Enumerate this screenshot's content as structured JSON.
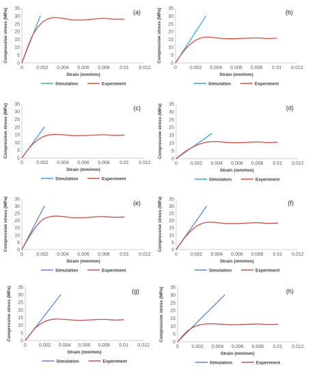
{
  "colors": {
    "simulation_cyan": "#2aa9d8",
    "simulation_blue": "#5b82d6",
    "experiment": "#e0483f",
    "axis": "#bfbfbf",
    "text": "#595959"
  },
  "chart_data": [
    {
      "type": "line",
      "panel_label": "(a)",
      "xlabel": "Strain (mm/mm)",
      "ylabel": "Compressive stress (MPa)",
      "xlim": [
        0,
        0.012
      ],
      "ylim": [
        0,
        35
      ],
      "xticks": [
        "0",
        "0.002",
        "0.004",
        "0.006",
        "0.008",
        "0.01",
        "0.012"
      ],
      "yticks": [
        "0",
        "5",
        "10",
        "15",
        "20",
        "25",
        "30",
        "35"
      ],
      "legend": "bottom",
      "series": [
        {
          "name": "Simulation",
          "color": "#2aa9d8",
          "x": [
            0,
            0.0018
          ],
          "y": [
            0,
            30
          ]
        },
        {
          "name": "Experiment",
          "color": "#e0483f",
          "x": [
            0,
            0.001,
            0.002,
            0.003,
            0.004,
            0.005,
            0.006,
            0.007,
            0.008,
            0.009,
            0.01
          ],
          "y": [
            0,
            17,
            26,
            29,
            28.5,
            27.5,
            27.5,
            28,
            28.5,
            28,
            28
          ]
        }
      ]
    },
    {
      "type": "line",
      "panel_label": "(b)",
      "xlabel": "Strain (mm/mm)",
      "ylabel": "Compressive stress (MPa)",
      "xlim": [
        0,
        0.012
      ],
      "ylim": [
        0,
        35
      ],
      "xticks": [
        "0",
        "0.002",
        "0.004",
        "0.006",
        "0.008",
        "0.01",
        "0.012"
      ],
      "yticks": [
        "0",
        "5",
        "10",
        "15",
        "20",
        "25",
        "30",
        "35"
      ],
      "legend": "bottom",
      "series": [
        {
          "name": "Simulation",
          "color": "#2aa9d8",
          "x": [
            0,
            0.003
          ],
          "y": [
            0,
            30
          ]
        },
        {
          "name": "Experiment",
          "color": "#e0483f",
          "x": [
            0,
            0.001,
            0.002,
            0.003,
            0.004,
            0.005,
            0.006,
            0.007,
            0.008,
            0.009,
            0.01
          ],
          "y": [
            0,
            9,
            14.5,
            16.5,
            16,
            15.5,
            15.5,
            15.8,
            16,
            15.6,
            15.8
          ]
        }
      ]
    },
    {
      "type": "line",
      "panel_label": "(c)",
      "xlabel": "Strain (mm/mm)",
      "ylabel": "Compressive stress (MPa)",
      "xlim": [
        0,
        0.012
      ],
      "ylim": [
        0,
        35
      ],
      "xticks": [
        "0",
        "0.002",
        "0.004",
        "0.006",
        "0.008",
        "0.01",
        "0.012"
      ],
      "yticks": [
        "0",
        "5",
        "10",
        "15",
        "20",
        "25",
        "30",
        "35"
      ],
      "legend": "bottom",
      "series": [
        {
          "name": "Simulation",
          "color": "#2aa9d8",
          "x": [
            0,
            0.0022
          ],
          "y": [
            0,
            20
          ]
        },
        {
          "name": "Experiment",
          "color": "#e0483f",
          "x": [
            0,
            0.001,
            0.002,
            0.003,
            0.004,
            0.005,
            0.006,
            0.007,
            0.008,
            0.009,
            0.01
          ],
          "y": [
            0,
            8.5,
            13.5,
            15.2,
            15,
            14.5,
            14.5,
            14.8,
            15,
            14.6,
            14.8
          ]
        }
      ]
    },
    {
      "type": "line",
      "panel_label": "(d)",
      "xlabel": "Strain (mm/mm)",
      "ylabel": "Compressive stress (MPa)",
      "xlim": [
        0,
        0.012
      ],
      "ylim": [
        0,
        35
      ],
      "xticks": [
        "0",
        "0.002",
        "0.004",
        "0.006",
        "0.008",
        "0.01",
        "0.012"
      ],
      "yticks": [
        "0",
        "5",
        "10",
        "15",
        "20",
        "25",
        "30",
        "35"
      ],
      "legend": "bottom",
      "series": [
        {
          "name": "Simulation",
          "color": "#2aa9d8",
          "x": [
            0,
            0.0035
          ],
          "y": [
            0,
            16
          ]
        },
        {
          "name": "Experiment",
          "color": "#e0483f",
          "x": [
            0,
            0.001,
            0.002,
            0.003,
            0.004,
            0.005,
            0.006,
            0.007,
            0.008,
            0.009,
            0.01
          ],
          "y": [
            0,
            5,
            8.5,
            10.5,
            10.8,
            10.4,
            10.2,
            10.4,
            10.7,
            10.3,
            10.5
          ]
        }
      ]
    },
    {
      "type": "line",
      "panel_label": "(e)",
      "xlabel": "Strain (mm/mm)",
      "ylabel": "Compressive stress (MPa)",
      "xlim": [
        0,
        0.012
      ],
      "ylim": [
        0,
        35
      ],
      "xticks": [
        "0",
        "0.002",
        "0.004",
        "0.006",
        "0.008",
        "0.01",
        "0.012"
      ],
      "yticks": [
        "0",
        "5",
        "10",
        "15",
        "20",
        "25",
        "30",
        "35"
      ],
      "legend": "bottom",
      "series": [
        {
          "name": "Simulation",
          "color": "#5b82d6",
          "x": [
            0,
            0.0022
          ],
          "y": [
            0,
            30
          ]
        },
        {
          "name": "Experiment",
          "color": "#c0504d",
          "x": [
            0,
            0.001,
            0.002,
            0.003,
            0.004,
            0.005,
            0.006,
            0.007,
            0.008,
            0.009,
            0.01
          ],
          "y": [
            0,
            12,
            20.5,
            23,
            22.8,
            22,
            22,
            22.5,
            22.8,
            22.3,
            22.5
          ]
        }
      ]
    },
    {
      "type": "line",
      "panel_label": "(f)",
      "xlabel": "Strain (mm/mm)",
      "ylabel": "Compressive stress (MPa)",
      "xlim": [
        0,
        0.012
      ],
      "ylim": [
        0,
        35
      ],
      "xticks": [
        "0",
        "0.002",
        "0.004",
        "0.006",
        "0.008",
        "0.01",
        "0.012"
      ],
      "yticks": [
        "0",
        "5",
        "10",
        "15",
        "20",
        "25",
        "30",
        "35"
      ],
      "legend": "bottom",
      "series": [
        {
          "name": "Simulation",
          "color": "#5b82d6",
          "x": [
            0,
            0.003
          ],
          "y": [
            0,
            30
          ]
        },
        {
          "name": "Experiment",
          "color": "#c0504d",
          "x": [
            0,
            0.001,
            0.002,
            0.003,
            0.004,
            0.005,
            0.006,
            0.007,
            0.008,
            0.009,
            0.01
          ],
          "y": [
            0,
            9.5,
            16,
            18.8,
            18.6,
            18,
            18,
            18.3,
            18.6,
            18.1,
            18.3
          ]
        }
      ]
    },
    {
      "type": "line",
      "panel_label": "(g)",
      "xlabel": "Strain (mm/mm)",
      "ylabel": "Compressive stress (MPa)",
      "xlim": [
        0,
        0.012
      ],
      "ylim": [
        0,
        35
      ],
      "xticks": [
        "0",
        "0.002",
        "0.004",
        "0.006",
        "0.008",
        "0.01",
        "0.012"
      ],
      "yticks": [
        "0",
        "5",
        "10",
        "15",
        "20",
        "25",
        "30",
        "35"
      ],
      "legend": "bottom",
      "series": [
        {
          "name": "Simulation",
          "color": "#5b82d6",
          "x": [
            0,
            0.0036
          ],
          "y": [
            0,
            30
          ]
        },
        {
          "name": "Experiment",
          "color": "#c0504d",
          "x": [
            0,
            0.001,
            0.002,
            0.003,
            0.004,
            0.005,
            0.006,
            0.007,
            0.008,
            0.009,
            0.01
          ],
          "y": [
            0,
            8,
            12.5,
            14,
            13.8,
            13.3,
            13.3,
            13.6,
            13.8,
            13.4,
            13.6
          ]
        }
      ]
    },
    {
      "type": "line",
      "panel_label": "(h)",
      "xlabel": "Strain (mm/mm)",
      "ylabel": "Compressive stress (MPa)",
      "xlim": [
        0,
        0.012
      ],
      "ylim": [
        0,
        35
      ],
      "xticks": [
        "0",
        "0.002",
        "0.004",
        "0.006",
        "0.008",
        "0.01",
        "0.012"
      ],
      "yticks": [
        "0",
        "5",
        "10",
        "15",
        "20",
        "25",
        "30",
        "35"
      ],
      "legend": "bottom",
      "series": [
        {
          "name": "Simulation",
          "color": "#5b82d6",
          "x": [
            0,
            0.0047
          ],
          "y": [
            0,
            30
          ]
        },
        {
          "name": "Experiment",
          "color": "#c0504d",
          "x": [
            0,
            0.001,
            0.002,
            0.003,
            0.004,
            0.005,
            0.006,
            0.007,
            0.008,
            0.009,
            0.01
          ],
          "y": [
            0,
            7,
            10.5,
            11.5,
            11.4,
            11,
            11,
            11.2,
            11.4,
            11.1,
            11.2
          ]
        }
      ]
    }
  ]
}
